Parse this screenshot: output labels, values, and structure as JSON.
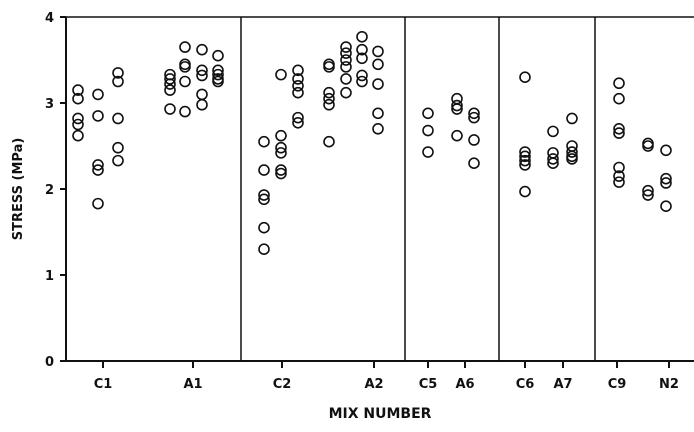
{
  "chart_data": {
    "type": "scatter",
    "title": "",
    "xlabel": "MIX NUMBER",
    "ylabel": "STRESS (MPa)",
    "ylim": [
      0,
      4
    ],
    "yticks": [
      "0",
      "1",
      "2",
      "3",
      "4"
    ],
    "grid": false,
    "groups": [
      {
        "label": "C1",
        "points": [
          3.15,
          3.05,
          2.82,
          2.75,
          2.62,
          3.1,
          2.85,
          2.28,
          2.22,
          1.83,
          3.35,
          3.25,
          2.82,
          2.48,
          2.33
        ]
      },
      {
        "label": "A1",
        "points": [
          3.33,
          3.28,
          3.22,
          3.15,
          2.93,
          3.65,
          3.45,
          3.42,
          3.25,
          2.9,
          3.62,
          3.38,
          3.32,
          3.1,
          2.98,
          3.55,
          3.38,
          3.33,
          3.28,
          3.25
        ]
      },
      {
        "label": "C2",
        "points": [
          2.55,
          2.22,
          1.93,
          1.88,
          1.55,
          1.3,
          3.33,
          2.62,
          2.48,
          2.42,
          2.22,
          2.18,
          3.38,
          3.28,
          3.2,
          3.12,
          2.83,
          2.77
        ]
      },
      {
        "label": "A2",
        "points": [
          3.45,
          3.42,
          3.12,
          3.05,
          2.98,
          2.55,
          3.65,
          3.58,
          3.5,
          3.42,
          3.12,
          3.28,
          3.77,
          3.62,
          3.52,
          3.32,
          3.25,
          3.6,
          3.45,
          3.22,
          2.88,
          2.7
        ]
      },
      {
        "label": "C5",
        "points": [
          2.88,
          2.68,
          2.43
        ]
      },
      {
        "label": "A6",
        "points": [
          3.05,
          2.97,
          2.93,
          2.62,
          2.88,
          2.83,
          2.57,
          2.3
        ]
      },
      {
        "label": "C6",
        "points": [
          3.3,
          2.43,
          2.38,
          2.33,
          2.28,
          1.97
        ]
      },
      {
        "label": "A7",
        "points": [
          2.67,
          2.42,
          2.35,
          2.3,
          2.82,
          2.5,
          2.43,
          2.38,
          2.35
        ]
      },
      {
        "label": "C9",
        "points": [
          3.23,
          3.05,
          2.7,
          2.65,
          2.25,
          2.15,
          2.08
        ]
      },
      {
        "label": "N2",
        "points": [
          2.53,
          2.5,
          1.98,
          1.93,
          2.45,
          2.12,
          2.07,
          1.8
        ]
      }
    ]
  }
}
